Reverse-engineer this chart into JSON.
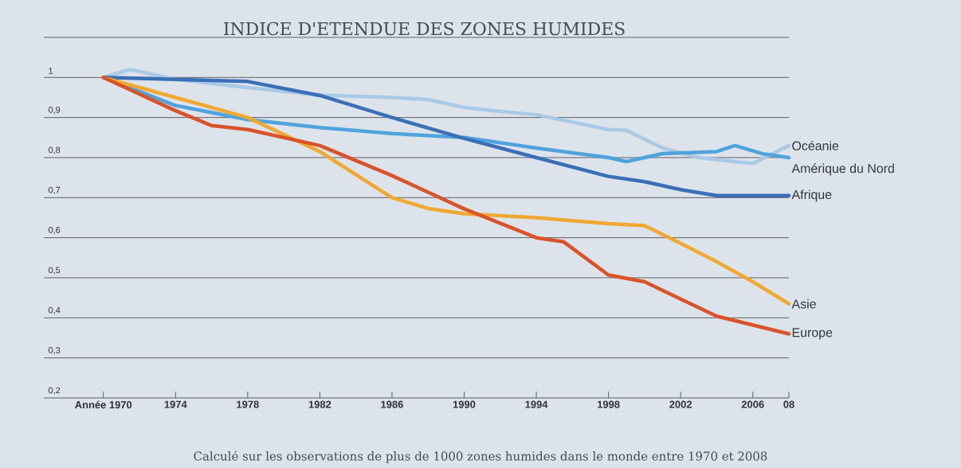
{
  "chart_data": {
    "type": "line",
    "title": "INDICE D'ETENDUE DES ZONES HUMIDES",
    "xlim": [
      1966.7,
      2008
    ],
    "ylim": [
      0.2,
      1.1
    ],
    "xticks": [
      {
        "value": 1970,
        "label": "Année 1970"
      },
      1974,
      1978,
      1982,
      1986,
      1990,
      1994,
      1998,
      2002,
      2006,
      {
        "value": 2008,
        "label": "08"
      }
    ],
    "yticks": [
      {
        "value": 0.2,
        "label": "0,2"
      },
      {
        "value": 0.3,
        "label": "0,3"
      },
      {
        "value": 0.4,
        "label": "0,4"
      },
      {
        "value": 0.5,
        "label": "0,5"
      },
      {
        "value": 0.6,
        "label": "0,6"
      },
      {
        "value": 0.7,
        "label": "0,7"
      },
      {
        "value": 0.8,
        "label": "0,8"
      },
      {
        "value": 0.9,
        "label": "0,9"
      },
      1,
      {
        "value": 1.1,
        "label": null
      }
    ],
    "grid": "y",
    "line_style": "solid",
    "marker": "none",
    "series": [
      {
        "name": "Océanie",
        "color": "#a9c9e6",
        "x": [
          1970,
          1971.5,
          1974,
          1978,
          1982,
          1986,
          1988,
          1990,
          1992,
          1994,
          1998,
          1999,
          2001,
          2003,
          2006,
          2008
        ],
        "values": [
          1.0,
          1.02,
          0.995,
          0.975,
          0.956,
          0.95,
          0.945,
          0.925,
          0.915,
          0.907,
          0.87,
          0.868,
          0.824,
          0.8,
          0.785,
          0.83
        ]
      },
      {
        "name": "Amérique du Nord",
        "color": "#4fa3dc",
        "x": [
          1970,
          1974,
          1978,
          1982,
          1986,
          1990,
          1994,
          1998,
          1999,
          2001,
          2004,
          2005,
          2006.5,
          2008
        ],
        "values": [
          1.0,
          0.93,
          0.895,
          0.875,
          0.86,
          0.85,
          0.824,
          0.8,
          0.79,
          0.81,
          0.815,
          0.83,
          0.81,
          0.8
        ]
      },
      {
        "name": "Afrique",
        "color": "#3a6fb5",
        "x": [
          1970,
          1974,
          1978,
          1982,
          1986,
          1990,
          1994,
          1998,
          2000,
          2002,
          2004,
          2008
        ],
        "values": [
          1.0,
          0.995,
          0.99,
          0.955,
          0.9,
          0.848,
          0.8,
          0.753,
          0.74,
          0.72,
          0.705,
          0.705
        ]
      },
      {
        "name": "Asie",
        "color": "#f0a830",
        "x": [
          1970,
          1974,
          1978,
          1982,
          1986,
          1988,
          1990,
          1994,
          1998,
          2000,
          2002,
          2004,
          2006,
          2008
        ],
        "values": [
          1.0,
          0.95,
          0.9,
          0.815,
          0.7,
          0.673,
          0.66,
          0.65,
          0.635,
          0.63,
          0.586,
          0.54,
          0.49,
          0.435
        ]
      },
      {
        "name": "Europe",
        "color": "#d9532a",
        "x": [
          1970,
          1974,
          1976,
          1978,
          1982,
          1986,
          1990,
          1994,
          1995.5,
          1998,
          2000,
          2002,
          2004,
          2008
        ],
        "values": [
          1.0,
          0.917,
          0.88,
          0.87,
          0.83,
          0.755,
          0.672,
          0.6,
          0.59,
          0.507,
          0.49,
          0.447,
          0.404,
          0.36
        ]
      }
    ],
    "annotations": [
      "Calculé sur les observations de plus de 1000 zones humides dans le monde entre 1970 et 2008"
    ]
  }
}
